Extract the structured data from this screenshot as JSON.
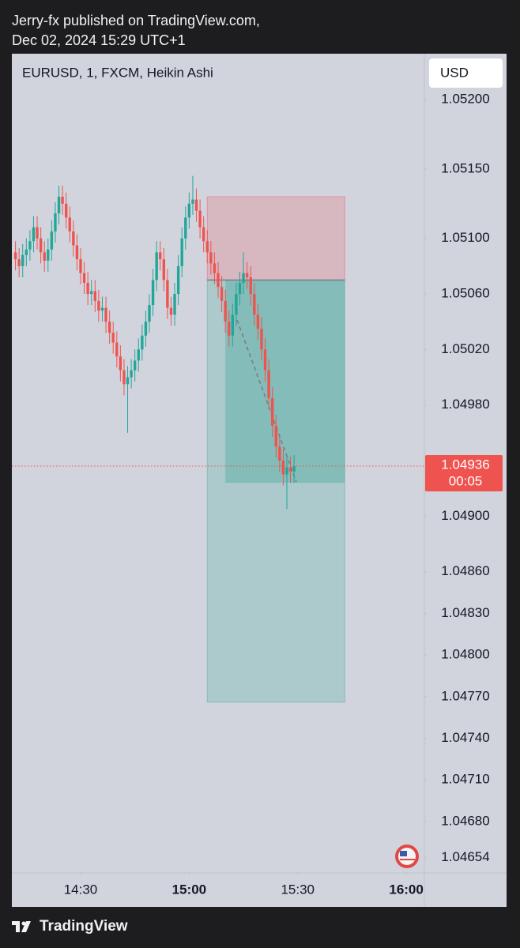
{
  "header": {
    "publisher": "Jerry-fx published on TradingView.com,",
    "timestamp": "Dec 02, 2024 15:29 UTC+1"
  },
  "footer": {
    "brand": "TradingView"
  },
  "chart_data": {
    "type": "candlestick",
    "title": "EURUSD, 1, FXCM, Heikin Ashi",
    "currency": "USD",
    "up_color": "#22a69a",
    "down_color": "#ef5350",
    "x": [
      "14:12",
      "14:13",
      "14:14",
      "14:15",
      "14:16",
      "14:17",
      "14:18",
      "14:19",
      "14:20",
      "14:21",
      "14:22",
      "14:23",
      "14:24",
      "14:25",
      "14:26",
      "14:27",
      "14:28",
      "14:29",
      "14:30",
      "14:31",
      "14:32",
      "14:33",
      "14:34",
      "14:35",
      "14:36",
      "14:37",
      "14:38",
      "14:39",
      "14:40",
      "14:41",
      "14:42",
      "14:43",
      "14:44",
      "14:45",
      "14:46",
      "14:47",
      "14:48",
      "14:49",
      "14:50",
      "14:51",
      "14:52",
      "14:53",
      "14:54",
      "14:55",
      "14:56",
      "14:57",
      "14:58",
      "14:59",
      "15:00",
      "15:01",
      "15:02",
      "15:03",
      "15:04",
      "15:05",
      "15:06",
      "15:07",
      "15:08",
      "15:09",
      "15:10",
      "15:11",
      "15:12",
      "15:13",
      "15:14",
      "15:15",
      "15:16",
      "15:17",
      "15:18",
      "15:19",
      "15:20",
      "15:21",
      "15:22",
      "15:23",
      "15:24",
      "15:25",
      "15:26",
      "15:27",
      "15:28",
      "15:29"
    ],
    "open": [
      1.0509,
      1.05085,
      1.0508,
      1.05088,
      1.05092,
      1.05098,
      1.05108,
      1.051,
      1.0509,
      1.05084,
      1.05092,
      1.05105,
      1.05118,
      1.0513,
      1.05125,
      1.05115,
      1.05105,
      1.05095,
      1.05085,
      1.05075,
      1.05068,
      1.0506,
      1.05062,
      1.05055,
      1.05048,
      1.0505,
      1.0504,
      1.05032,
      1.05025,
      1.05015,
      1.05005,
      1.04995,
      1.05,
      1.05005,
      1.05012,
      1.0502,
      1.0503,
      1.0504,
      1.05052,
      1.0507,
      1.0509,
      1.05085,
      1.0507,
      1.0505,
      1.05045,
      1.0506,
      1.0508,
      1.051,
      1.05115,
      1.05125,
      1.05128,
      1.0512,
      1.05108,
      1.05098,
      1.0509,
      1.05082,
      1.05075,
      1.05065,
      1.05055,
      1.0504,
      1.0503,
      1.05045,
      1.0506,
      1.05068,
      1.05075,
      1.05072,
      1.0506,
      1.05045,
      1.05035,
      1.0502,
      1.05005,
      1.04985,
      1.04965,
      1.0495,
      1.0494,
      1.0493,
      1.04935,
      1.04932
    ],
    "high": [
      1.05098,
      1.05093,
      1.05096,
      1.051,
      1.05106,
      1.05116,
      1.05116,
      1.05108,
      1.05098,
      1.051,
      1.05113,
      1.05126,
      1.05138,
      1.05138,
      1.05133,
      1.05123,
      1.05113,
      1.05103,
      1.05093,
      1.05083,
      1.05076,
      1.0507,
      1.0507,
      1.05063,
      1.05058,
      1.05058,
      1.05048,
      1.0504,
      1.05033,
      1.05023,
      1.05013,
      1.05008,
      1.05013,
      1.0502,
      1.05028,
      1.05038,
      1.05048,
      1.0506,
      1.05078,
      1.05098,
      1.05098,
      1.05093,
      1.05078,
      1.05058,
      1.05068,
      1.05088,
      1.05108,
      1.05123,
      1.05133,
      1.05145,
      1.05136,
      1.05128,
      1.05116,
      1.05106,
      1.05098,
      1.0509,
      1.05083,
      1.05073,
      1.05063,
      1.05048,
      1.05053,
      1.05068,
      1.05076,
      1.0509,
      1.05083,
      1.0508,
      1.05068,
      1.05053,
      1.05043,
      1.05028,
      1.05013,
      1.04993,
      1.04973,
      1.04958,
      1.04948,
      1.04943,
      1.04943,
      1.04944
    ],
    "low": [
      1.05077,
      1.05072,
      1.05072,
      1.0508,
      1.05084,
      1.0509,
      1.05092,
      1.05082,
      1.05076,
      1.05076,
      1.05084,
      1.05097,
      1.0511,
      1.05117,
      1.05107,
      1.05097,
      1.05087,
      1.05077,
      1.05067,
      1.0506,
      1.05052,
      1.05052,
      1.05047,
      1.0504,
      1.0504,
      1.05032,
      1.05024,
      1.05017,
      1.05007,
      1.04997,
      1.04987,
      1.0496,
      1.04992,
      1.04997,
      1.05004,
      1.05012,
      1.05022,
      1.05032,
      1.05044,
      1.05062,
      1.05077,
      1.05062,
      1.05042,
      1.05037,
      1.05037,
      1.05052,
      1.05072,
      1.05092,
      1.05107,
      1.05117,
      1.05112,
      1.051,
      1.0509,
      1.05082,
      1.05074,
      1.05067,
      1.05057,
      1.05047,
      1.05032,
      1.05022,
      1.05022,
      1.05037,
      1.05052,
      1.0506,
      1.05064,
      1.05052,
      1.05037,
      1.05027,
      1.05012,
      1.04997,
      1.04977,
      1.04957,
      1.04942,
      1.04932,
      1.04922,
      1.04905,
      1.04924,
      1.04924
    ],
    "close": [
      1.05085,
      1.0508,
      1.05088,
      1.05092,
      1.05098,
      1.05108,
      1.051,
      1.0509,
      1.05084,
      1.05092,
      1.05105,
      1.05118,
      1.0513,
      1.05125,
      1.05115,
      1.05105,
      1.05095,
      1.05085,
      1.05075,
      1.05068,
      1.0506,
      1.05062,
      1.05055,
      1.05048,
      1.0505,
      1.0504,
      1.05032,
      1.05025,
      1.05015,
      1.05005,
      1.04995,
      1.05,
      1.05005,
      1.05012,
      1.0502,
      1.0503,
      1.0504,
      1.05052,
      1.0507,
      1.0509,
      1.05085,
      1.0507,
      1.0505,
      1.05045,
      1.0506,
      1.0508,
      1.051,
      1.05115,
      1.05125,
      1.05128,
      1.0512,
      1.05108,
      1.05098,
      1.0509,
      1.05082,
      1.05075,
      1.05065,
      1.05055,
      1.0504,
      1.0503,
      1.05045,
      1.0506,
      1.05068,
      1.05075,
      1.05072,
      1.0506,
      1.05045,
      1.05035,
      1.0502,
      1.05005,
      1.04985,
      1.04965,
      1.0495,
      1.0494,
      1.0493,
      1.04935,
      1.04932,
      1.04936
    ],
    "xlim": [
      "14:11",
      "16:05"
    ],
    "xticks": [
      "14:30",
      "15:00",
      "15:30",
      "16:00"
    ],
    "ylim": [
      1.04643,
      1.05233
    ],
    "yticks": [
      {
        "value": 1.052,
        "label": "1.05200"
      },
      {
        "value": 1.0515,
        "label": "1.05150"
      },
      {
        "value": 1.051,
        "label": "1.05100"
      },
      {
        "value": 1.0506,
        "label": "1.05060"
      },
      {
        "value": 1.0502,
        "label": "1.05020"
      },
      {
        "value": 1.0498,
        "label": "1.04980"
      },
      {
        "value": 1.049,
        "label": "1.04900"
      },
      {
        "value": 1.0486,
        "label": "1.04860"
      },
      {
        "value": 1.0483,
        "label": "1.04830"
      },
      {
        "value": 1.048,
        "label": "1.04800"
      },
      {
        "value": 1.0477,
        "label": "1.04770"
      },
      {
        "value": 1.0474,
        "label": "1.04740"
      },
      {
        "value": 1.0471,
        "label": "1.04710"
      },
      {
        "value": 1.0468,
        "label": "1.04680"
      },
      {
        "value": 1.04654,
        "label": "1.04654"
      }
    ],
    "last_price": 1.04936,
    "countdown": "00:05",
    "position": {
      "start": "15:05",
      "end": "15:43",
      "entry": 1.0507,
      "stop": 1.0513,
      "target": 1.04766,
      "filled_from": "15:10",
      "filled_to": 1.04924
    }
  }
}
